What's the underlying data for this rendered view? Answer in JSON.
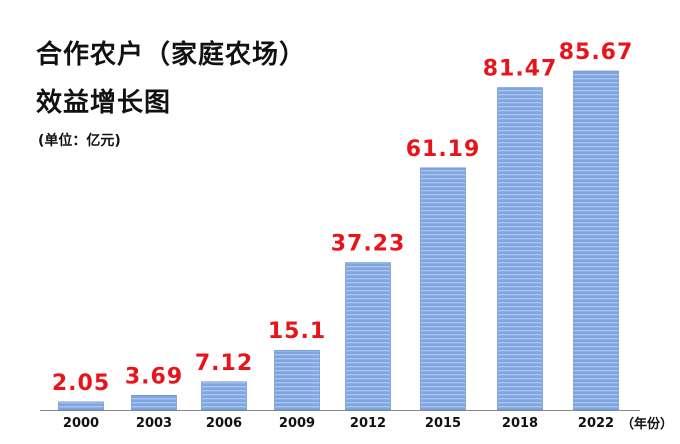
{
  "chart_data": {
    "type": "bar",
    "title_line1": "合作农户（家庭农场）",
    "title_line2": "效益增长图",
    "unit_note": "(单位：亿元)",
    "x_suffix": "（年份）",
    "categories": [
      "2000",
      "2003",
      "2006",
      "2009",
      "2012",
      "2015",
      "2018",
      "2022"
    ],
    "values": [
      2.05,
      3.69,
      7.12,
      15.1,
      37.23,
      61.19,
      81.47,
      85.67
    ],
    "value_labels": [
      "2.05",
      "3.69",
      "7.12",
      "15.1",
      "37.23",
      "61.19",
      "81.47",
      "85.67"
    ],
    "ylim": [
      0,
      85.67
    ],
    "grid": false,
    "colors": {
      "bar": "#7fa6e0",
      "bar_stripe": "#a9c4ee",
      "bar_border": "#5f86c4",
      "label": "#e8141b",
      "axis": "#888888"
    }
  }
}
